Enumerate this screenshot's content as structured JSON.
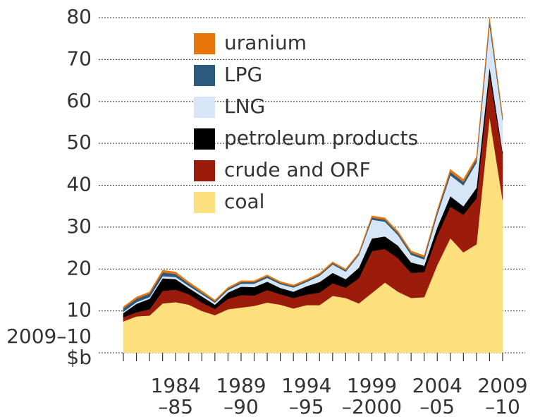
{
  "chart_data": {
    "type": "stacked_area",
    "y_label": [
      "2009–10",
      "$b"
    ],
    "categories": [
      null,
      null,
      null,
      null,
      [
        "1984",
        "–85"
      ],
      null,
      null,
      null,
      null,
      [
        "1989",
        "–90"
      ],
      null,
      null,
      null,
      null,
      [
        "1994",
        "–95"
      ],
      null,
      null,
      null,
      null,
      [
        "1999",
        "–2000"
      ],
      null,
      null,
      null,
      null,
      [
        "2004",
        "–05"
      ],
      null,
      null,
      null,
      null,
      [
        "2009",
        "–10"
      ]
    ],
    "ylim": [
      0,
      80
    ],
    "yticks": [
      10,
      20,
      30,
      40,
      50,
      60,
      70,
      80
    ],
    "grid": true,
    "series": [
      {
        "name": "coal",
        "color": "#fde07e",
        "values": [
          7.5,
          8.7,
          8.9,
          11.8,
          12.1,
          11.5,
          10,
          9,
          10.4,
          10.8,
          11.2,
          12,
          11.5,
          10.6,
          11.4,
          11.4,
          13.6,
          13.1,
          11.8,
          14.3,
          16.8,
          14.6,
          13.1,
          13.3,
          21,
          27.4,
          24,
          25.9,
          56.3,
          36.5
        ]
      },
      {
        "name": "crude and ORF",
        "color": "#9b1c0a",
        "values": [
          1,
          1,
          1.5,
          3,
          3,
          2.5,
          2,
          1.5,
          2.5,
          3,
          2.5,
          3,
          2.5,
          2.5,
          2.5,
          3,
          3,
          2.5,
          6,
          10,
          8,
          8,
          6,
          6,
          7,
          7.5,
          9,
          11,
          10,
          11
        ]
      },
      {
        "name": "petroleum products",
        "color": "#000000",
        "values": [
          1,
          2,
          2.5,
          3,
          2.5,
          1.5,
          1.5,
          1,
          1.5,
          2,
          2,
          2,
          1.5,
          1.5,
          2,
          2.5,
          2.5,
          2,
          2.5,
          3,
          3,
          3,
          2.5,
          1.5,
          2,
          2.5,
          2,
          2.5,
          2,
          0.5
        ]
      },
      {
        "name": "LNG",
        "color": "#d6e6f7",
        "values": [
          0.3,
          0.4,
          0.4,
          0.5,
          0.5,
          0.5,
          0.5,
          0.5,
          0.6,
          0.7,
          0.8,
          0.9,
          0.9,
          1,
          1,
          1.5,
          2,
          1.8,
          3,
          4.5,
          3.5,
          2.5,
          1.8,
          1.5,
          3,
          5,
          5,
          6,
          10,
          7.5
        ]
      },
      {
        "name": "LPG",
        "color": "#2b5a7e",
        "values": [
          0.8,
          0.8,
          0.8,
          0.9,
          0.7,
          0.5,
          0.4,
          0.3,
          0.3,
          0.4,
          0.4,
          0.4,
          0.3,
          0.3,
          0.3,
          0.3,
          0.3,
          0.3,
          0.3,
          0.5,
          0.5,
          0.5,
          0.5,
          0.5,
          0.6,
          0.8,
          0.8,
          0.8,
          1,
          0.5
        ]
      },
      {
        "name": "uranium",
        "color": "#e8750a",
        "values": [
          0.4,
          0.4,
          0.4,
          0.5,
          0.5,
          0.4,
          0.4,
          0.3,
          0.3,
          0.3,
          0.3,
          0.3,
          0.3,
          0.3,
          0.3,
          0.3,
          0.3,
          0.3,
          0.3,
          0.4,
          0.4,
          0.4,
          0.4,
          0.4,
          0.5,
          0.6,
          0.6,
          0.6,
          0.7,
          0.5
        ]
      }
    ]
  }
}
